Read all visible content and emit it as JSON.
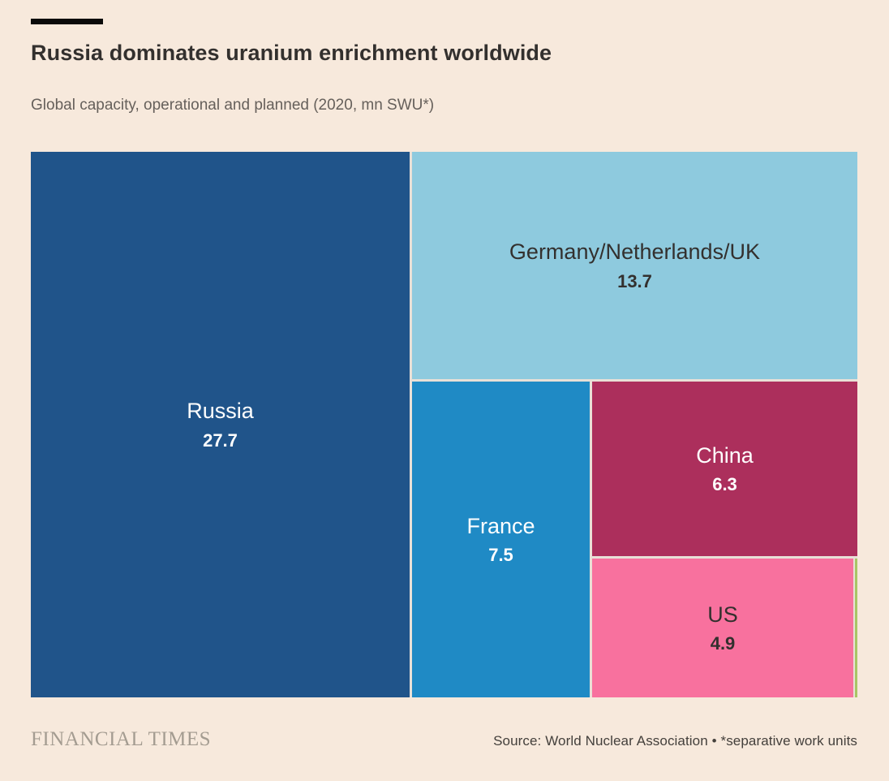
{
  "header": {
    "title": "Russia dominates uranium enrichment worldwide",
    "subtitle": "Global capacity, operational and planned (2020, mn SWU*)"
  },
  "chart_data": {
    "type": "treemap",
    "title": "Russia dominates uranium enrichment worldwide",
    "subtitle": "Global capacity, operational and planned (2020, mn SWU*)",
    "unit": "mn SWU",
    "year": "2020",
    "segments": [
      {
        "label": "Russia",
        "value": "27.7",
        "color": "#20548a",
        "text_color": "#ffffff"
      },
      {
        "label": "Germany/Netherlands/UK",
        "value": "13.7",
        "color": "#8ecade",
        "text_color": "#33302e"
      },
      {
        "label": "France",
        "value": "7.5",
        "color": "#1f8ac5",
        "text_color": "#ffffff"
      },
      {
        "label": "China",
        "value": "6.3",
        "color": "#ac2f5c",
        "text_color": "#ffffff"
      },
      {
        "label": "US",
        "value": "4.9",
        "color": "#f8719e",
        "text_color": "#33302e"
      },
      {
        "label": "",
        "value": "",
        "color": "#a9c565",
        "text_color": "#33302e"
      }
    ]
  },
  "footer": {
    "brand": "FINANCIAL TIMES",
    "source": "Source: World Nuclear Association • *separative work units"
  }
}
